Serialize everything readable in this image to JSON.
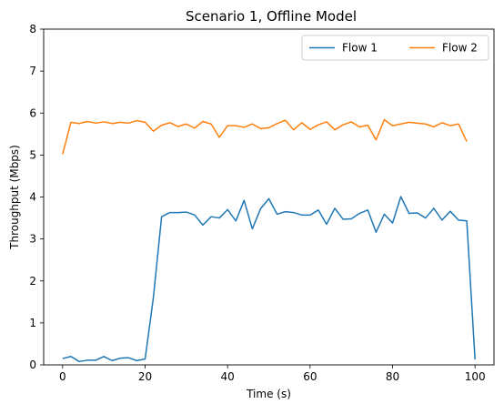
{
  "chart_data": {
    "type": "line",
    "title": "Scenario 1, Offline Model",
    "xlabel": "Time (s)",
    "ylabel": "Throughput (Mbps)",
    "xlim": [
      -4.6,
      104.6
    ],
    "ylim": [
      0,
      8
    ],
    "xticks": [
      0,
      20,
      40,
      60,
      80,
      100
    ],
    "yticks": [
      0,
      1,
      2,
      3,
      4,
      5,
      6,
      7,
      8
    ],
    "grid": false,
    "legend_position": "top-right",
    "series": [
      {
        "name": "Flow 1",
        "color": "#1f77b4",
        "x": [
          0,
          2,
          4,
          6,
          8,
          10,
          12,
          14,
          16,
          18,
          20,
          22,
          24,
          26,
          28,
          30,
          32,
          34,
          36,
          38,
          40,
          42,
          44,
          46,
          48,
          50,
          52,
          54,
          56,
          58,
          60,
          62,
          64,
          66,
          68,
          70,
          72,
          74,
          76,
          78,
          80,
          82,
          84,
          86,
          88,
          90,
          92,
          94,
          96,
          98,
          100
        ],
        "y": [
          0.15,
          0.2,
          0.08,
          0.11,
          0.11,
          0.2,
          0.1,
          0.16,
          0.17,
          0.1,
          0.14,
          1.6,
          3.53,
          3.63,
          3.63,
          3.64,
          3.57,
          3.33,
          3.53,
          3.5,
          3.7,
          3.43,
          3.92,
          3.24,
          3.72,
          3.96,
          3.59,
          3.65,
          3.63,
          3.57,
          3.57,
          3.69,
          3.35,
          3.73,
          3.47,
          3.48,
          3.61,
          3.69,
          3.16,
          3.59,
          3.38,
          4.01,
          3.61,
          3.62,
          3.5,
          3.73,
          3.45,
          3.66,
          3.45,
          3.43,
          0.13
        ]
      },
      {
        "name": "Flow 2",
        "color": "#ff7f0e",
        "x": [
          0,
          2,
          4,
          6,
          8,
          10,
          12,
          14,
          16,
          18,
          20,
          22,
          24,
          26,
          28,
          30,
          32,
          34,
          36,
          38,
          40,
          42,
          44,
          46,
          48,
          50,
          52,
          54,
          56,
          58,
          60,
          62,
          64,
          66,
          68,
          70,
          72,
          74,
          76,
          78,
          80,
          82,
          84,
          86,
          88,
          90,
          92,
          94,
          96,
          98
        ],
        "y": [
          5.02,
          5.78,
          5.75,
          5.8,
          5.76,
          5.79,
          5.75,
          5.78,
          5.76,
          5.82,
          5.78,
          5.57,
          5.71,
          5.77,
          5.68,
          5.74,
          5.64,
          5.8,
          5.74,
          5.42,
          5.7,
          5.7,
          5.66,
          5.74,
          5.63,
          5.65,
          5.75,
          5.83,
          5.6,
          5.77,
          5.61,
          5.72,
          5.79,
          5.6,
          5.72,
          5.79,
          5.67,
          5.71,
          5.36,
          5.84,
          5.7,
          5.74,
          5.78,
          5.76,
          5.74,
          5.67,
          5.77,
          5.7,
          5.74,
          5.32
        ]
      }
    ]
  }
}
